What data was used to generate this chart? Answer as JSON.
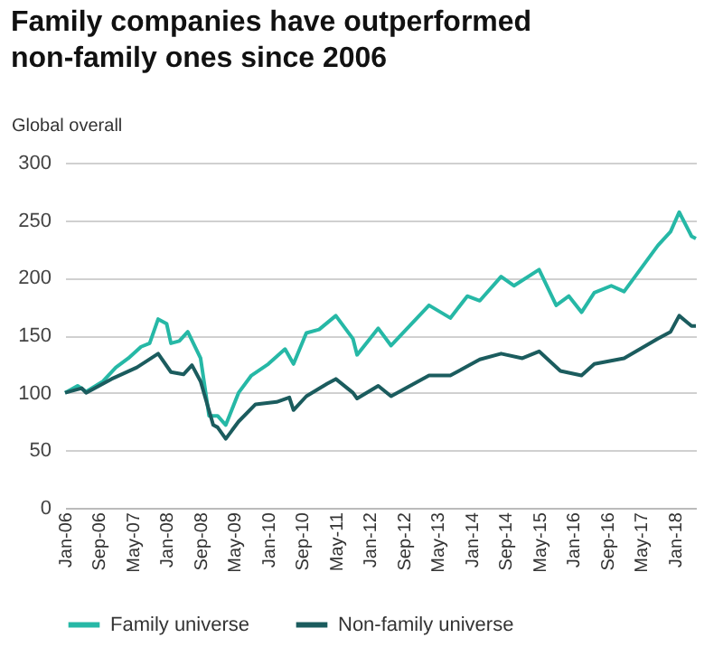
{
  "chart_data": {
    "type": "line",
    "title": "Family companies have outperformed non-family ones since 2006",
    "ylabel": "Global overall",
    "ylim": [
      0,
      300
    ],
    "yticks": [
      0,
      50,
      100,
      150,
      200,
      250,
      300
    ],
    "xlim": [
      "2006-01",
      "2018-06"
    ],
    "xticks": [
      {
        "value": "2006-01",
        "label": "Jan-06"
      },
      {
        "value": "2006-09",
        "label": "Sep-06"
      },
      {
        "value": "2007-05",
        "label": "May-07"
      },
      {
        "value": "2008-01",
        "label": "Jan-08"
      },
      {
        "value": "2008-09",
        "label": "Sep-08"
      },
      {
        "value": "2009-05",
        "label": "May-09"
      },
      {
        "value": "2010-01",
        "label": "Jan-10"
      },
      {
        "value": "2010-09",
        "label": "Sep-10"
      },
      {
        "value": "2011-05",
        "label": "May-11"
      },
      {
        "value": "2012-01",
        "label": "Jan-12"
      },
      {
        "value": "2012-09",
        "label": "Sep-12"
      },
      {
        "value": "2013-05",
        "label": "May-13"
      },
      {
        "value": "2014-01",
        "label": "Jan-14"
      },
      {
        "value": "2014-09",
        "label": "Sep-14"
      },
      {
        "value": "2015-05",
        "label": "May-15"
      },
      {
        "value": "2016-01",
        "label": "Jan-16"
      },
      {
        "value": "2016-09",
        "label": "Sep-16"
      },
      {
        "value": "2017-05",
        "label": "May-17"
      },
      {
        "value": "2018-01",
        "label": "Jan-18"
      }
    ],
    "grid": "y",
    "legend": "bottom left",
    "line_style": "solid",
    "marker": "none",
    "series": [
      {
        "name": "Family universe",
        "color": "#26b8a6",
        "x": [
          "2006-01",
          "2006-04",
          "2006-06",
          "2006-10",
          "2007-01",
          "2007-04",
          "2007-07",
          "2007-09",
          "2007-11",
          "2008-01",
          "2008-02",
          "2008-04",
          "2008-06",
          "2008-09",
          "2008-11",
          "2009-01",
          "2009-03",
          "2009-06",
          "2009-09",
          "2010-01",
          "2010-05",
          "2010-07",
          "2010-10",
          "2011-01",
          "2011-05",
          "2011-09",
          "2011-10",
          "2012-03",
          "2012-06",
          "2013-03",
          "2013-08",
          "2013-12",
          "2014-03",
          "2014-08",
          "2014-11",
          "2015-05",
          "2015-09",
          "2015-12",
          "2016-03",
          "2016-06",
          "2016-10",
          "2017-01",
          "2017-09",
          "2017-12",
          "2018-02",
          "2018-05",
          "2018-06"
        ],
        "values": [
          100,
          106,
          101,
          110,
          122,
          130,
          140,
          143,
          164,
          160,
          143,
          145,
          153,
          130,
          80,
          80,
          72,
          100,
          115,
          125,
          138,
          125,
          152,
          155,
          167,
          147,
          133,
          156,
          141,
          176,
          165,
          184,
          180,
          201,
          193,
          207,
          176,
          184,
          170,
          187,
          193,
          188,
          228,
          240,
          257,
          236,
          234
        ]
      },
      {
        "name": "Non-family universe",
        "color": "#1b5c5e",
        "x": [
          "2006-01",
          "2006-05",
          "2006-06",
          "2006-12",
          "2007-06",
          "2007-11",
          "2008-02",
          "2008-05",
          "2008-07",
          "2008-09",
          "2008-12",
          "2009-01",
          "2009-03",
          "2009-06",
          "2009-10",
          "2010-03",
          "2010-06",
          "2010-07",
          "2010-10",
          "2011-03",
          "2011-05",
          "2011-09",
          "2011-10",
          "2012-03",
          "2012-06",
          "2013-03",
          "2013-08",
          "2014-03",
          "2014-08",
          "2015-01",
          "2015-05",
          "2015-10",
          "2016-03",
          "2016-06",
          "2017-01",
          "2017-09",
          "2017-12",
          "2018-02",
          "2018-05",
          "2018-06"
        ],
        "values": [
          100,
          104,
          100,
          112,
          122,
          134,
          118,
          116,
          124,
          110,
          72,
          70,
          60,
          75,
          90,
          92,
          96,
          85,
          97,
          108,
          112,
          100,
          95,
          106,
          97,
          115,
          115,
          129,
          134,
          130,
          136,
          119,
          115,
          125,
          130,
          147,
          153,
          167,
          158,
          158
        ]
      }
    ]
  }
}
